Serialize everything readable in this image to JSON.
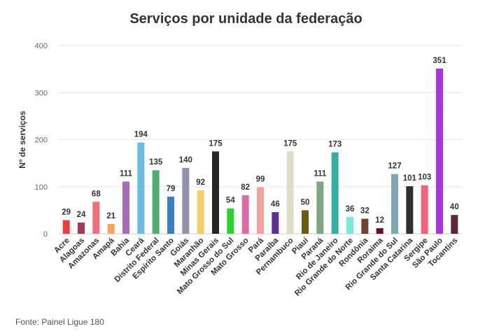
{
  "chart_data": {
    "type": "bar",
    "title": "Serviços por unidade da federação",
    "xlabel": "",
    "ylabel": "Nº de serviços",
    "ylim": [
      0,
      400
    ],
    "yticks": [
      0,
      100,
      200,
      300,
      400
    ],
    "grid": true,
    "legend": "none",
    "categories": [
      "Acre",
      "Alagoas",
      "Amazonas",
      "Amapá",
      "Bahia",
      "Ceará",
      "Distrito Federal",
      "Espírito Santo",
      "Goiás",
      "Maranhão",
      "Minas Gerais",
      "Mato Grosso do Sul",
      "Mato Grosso",
      "Pará",
      "Paraíba",
      "Pernambuco",
      "Piauí",
      "Paraná",
      "Rio de Janeiro",
      "Rio Grande do Norte",
      "Rondônia",
      "Roraima",
      "Rio Grande do Sul",
      "Santa Catarina",
      "Sergipe",
      "São Paulo",
      "Tocantins"
    ],
    "values": [
      29,
      24,
      68,
      21,
      111,
      194,
      135,
      79,
      140,
      92,
      175,
      54,
      82,
      99,
      46,
      175,
      50,
      111,
      173,
      36,
      32,
      12,
      127,
      101,
      103,
      351,
      40
    ],
    "colors": [
      "#e8403e",
      "#a33a5c",
      "#ef6e7e",
      "#f5a65b",
      "#a56db8",
      "#6bbde3",
      "#4dae6d",
      "#3a7fc1",
      "#9191ab",
      "#f2cf6a",
      "#262626",
      "#2dd12f",
      "#dc6ca9",
      "#f5a39a",
      "#5a2f91",
      "#dedcc2",
      "#6b5a12",
      "#7fa585",
      "#33b0a2",
      "#79ead6",
      "#71422d",
      "#6b0f27",
      "#7ea7b3",
      "#2f2f2f",
      "#f46279",
      "#a934e0",
      "#592a30"
    ]
  },
  "footer": {
    "source": "Fonte: Painel Ligue 180"
  }
}
